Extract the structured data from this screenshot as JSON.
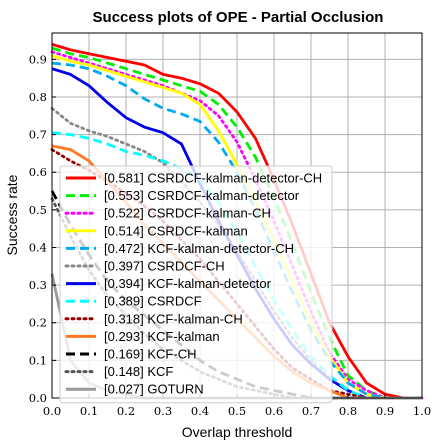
{
  "chart_data": {
    "type": "line",
    "title": "Success plots of OPE - Partial Occlusion",
    "xlabel": "Overlap threshold",
    "ylabel": "Success rate",
    "xlim": [
      0,
      1
    ],
    "ylim": [
      0,
      0.97
    ],
    "x_ticks": [
      "0.0",
      "0.1",
      "0.2",
      "0.3",
      "0.4",
      "0.5",
      "0.6",
      "0.7",
      "0.8",
      "0.9",
      "1.0"
    ],
    "y_ticks": [
      "0.0",
      "0.1",
      "0.2",
      "0.3",
      "0.4",
      "0.5",
      "0.6",
      "0.7",
      "0.8",
      "0.9"
    ],
    "grid": true,
    "legend_position": "lower-left",
    "x": [
      0.0,
      0.05,
      0.1,
      0.15,
      0.2,
      0.25,
      0.3,
      0.35,
      0.4,
      0.45,
      0.5,
      0.55,
      0.6,
      0.65,
      0.7,
      0.75,
      0.8,
      0.85,
      0.9,
      0.95,
      1.0
    ],
    "series": [
      {
        "name": "[0.581] CSRDCF-kalman-detector-CH",
        "color": "#ff0000",
        "dash": "solid",
        "values": [
          0.94,
          0.925,
          0.915,
          0.905,
          0.895,
          0.885,
          0.86,
          0.85,
          0.835,
          0.81,
          0.76,
          0.69,
          0.58,
          0.46,
          0.33,
          0.2,
          0.11,
          0.04,
          0.01,
          0.0,
          0.0
        ]
      },
      {
        "name": "[0.553] CSRDCF-kalman-detector",
        "color": "#00ee00",
        "dash": "dashed",
        "values": [
          0.93,
          0.915,
          0.905,
          0.89,
          0.875,
          0.86,
          0.845,
          0.83,
          0.815,
          0.78,
          0.72,
          0.64,
          0.53,
          0.41,
          0.28,
          0.16,
          0.06,
          0.02,
          0.0,
          0.0,
          0.0
        ]
      },
      {
        "name": "[0.522] CSRDCF-kalman-CH",
        "color": "#ff00ff",
        "dash": "dotted",
        "values": [
          0.92,
          0.905,
          0.89,
          0.875,
          0.86,
          0.845,
          0.83,
          0.81,
          0.79,
          0.75,
          0.68,
          0.58,
          0.47,
          0.35,
          0.23,
          0.12,
          0.05,
          0.02,
          0.0,
          0.0,
          0.0
        ]
      },
      {
        "name": "[0.514] CSRDCF-kalman",
        "color": "#ffff00",
        "dash": "solid",
        "values": [
          0.91,
          0.895,
          0.885,
          0.87,
          0.855,
          0.84,
          0.825,
          0.81,
          0.78,
          0.71,
          0.62,
          0.52,
          0.42,
          0.31,
          0.2,
          0.11,
          0.04,
          0.01,
          0.0,
          0.0,
          0.0
        ]
      },
      {
        "name": "[0.472] KCF-kalman-detector-CH",
        "color": "#00aaee",
        "dash": "dashed",
        "values": [
          0.89,
          0.885,
          0.875,
          0.855,
          0.83,
          0.795,
          0.77,
          0.755,
          0.735,
          0.68,
          0.6,
          0.5,
          0.39,
          0.28,
          0.18,
          0.1,
          0.04,
          0.01,
          0.0,
          0.0,
          0.0
        ]
      },
      {
        "name": "[0.397] CSRDCF-CH",
        "color": "#888888",
        "dash": "dotted",
        "values": [
          0.77,
          0.73,
          0.71,
          0.695,
          0.675,
          0.655,
          0.625,
          0.575,
          0.52,
          0.46,
          0.39,
          0.31,
          0.23,
          0.16,
          0.1,
          0.05,
          0.02,
          0.0,
          0.0,
          0.0,
          0.0
        ]
      },
      {
        "name": "[0.394] KCF-kalman-detector",
        "color": "#0000ee",
        "dash": "solid",
        "values": [
          0.875,
          0.86,
          0.83,
          0.785,
          0.745,
          0.72,
          0.705,
          0.675,
          0.57,
          0.47,
          0.38,
          0.29,
          0.21,
          0.14,
          0.09,
          0.05,
          0.02,
          0.0,
          0.0,
          0.0,
          0.0
        ]
      },
      {
        "name": "[0.389] CSRDCF",
        "color": "#00ffff",
        "dash": "dashed",
        "values": [
          0.705,
          0.7,
          0.69,
          0.675,
          0.655,
          0.645,
          0.63,
          0.61,
          0.58,
          0.52,
          0.44,
          0.35,
          0.26,
          0.18,
          0.11,
          0.06,
          0.02,
          0.0,
          0.0,
          0.0,
          0.0
        ]
      },
      {
        "name": "[0.318] KCF-kalman-CH",
        "color": "#990000",
        "dash": "dotted",
        "values": [
          0.66,
          0.63,
          0.605,
          0.575,
          0.545,
          0.51,
          0.47,
          0.42,
          0.37,
          0.31,
          0.25,
          0.19,
          0.13,
          0.08,
          0.05,
          0.02,
          0.01,
          0.0,
          0.0,
          0.0,
          0.0
        ]
      },
      {
        "name": "[0.293] KCF-kalman",
        "color": "#ff7722",
        "dash": "solid",
        "values": [
          0.67,
          0.66,
          0.63,
          0.575,
          0.52,
          0.46,
          0.41,
          0.36,
          0.31,
          0.26,
          0.21,
          0.16,
          0.11,
          0.07,
          0.04,
          0.02,
          0.0,
          0.0,
          0.0,
          0.0,
          0.0
        ]
      },
      {
        "name": "[0.169] KCF-CH",
        "color": "#000000",
        "dash": "dashed",
        "values": [
          0.55,
          0.46,
          0.38,
          0.31,
          0.26,
          0.22,
          0.18,
          0.14,
          0.1,
          0.07,
          0.05,
          0.03,
          0.02,
          0.01,
          0.0,
          0.0,
          0.0,
          0.0,
          0.0,
          0.0,
          0.0
        ]
      },
      {
        "name": "[0.148] KCF",
        "color": "#555555",
        "dash": "dotted",
        "values": [
          0.53,
          0.43,
          0.34,
          0.27,
          0.22,
          0.17,
          0.13,
          0.1,
          0.07,
          0.05,
          0.03,
          0.02,
          0.01,
          0.0,
          0.0,
          0.0,
          0.0,
          0.0,
          0.0,
          0.0,
          0.0
        ]
      },
      {
        "name": "[0.027] GOTURN",
        "color": "#999999",
        "dash": "solid",
        "values": [
          0.33,
          0.1,
          0.04,
          0.02,
          0.01,
          0.0,
          0.0,
          0.0,
          0.0,
          0.0,
          0.0,
          0.0,
          0.0,
          0.0,
          0.0,
          0.0,
          0.0,
          0.0,
          0.0,
          0.0,
          0.0
        ]
      }
    ]
  }
}
